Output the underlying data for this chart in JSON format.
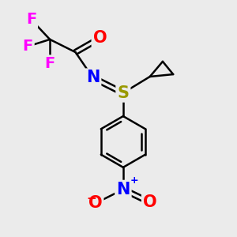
{
  "bg_color": "#ebebeb",
  "bond_color": "#000000",
  "atom_colors": {
    "F": "#ff00ff",
    "O_carbonyl": "#ff0000",
    "N": "#0000ff",
    "S": "#999900",
    "N_nitro": "#0000ff",
    "O_nitro": "#ff0000"
  },
  "bond_width": 1.8,
  "font_size": 14,
  "fig_size": [
    3.0,
    3.0
  ],
  "dpi": 100,
  "xlim": [
    0,
    10
  ],
  "ylim": [
    0,
    10
  ]
}
